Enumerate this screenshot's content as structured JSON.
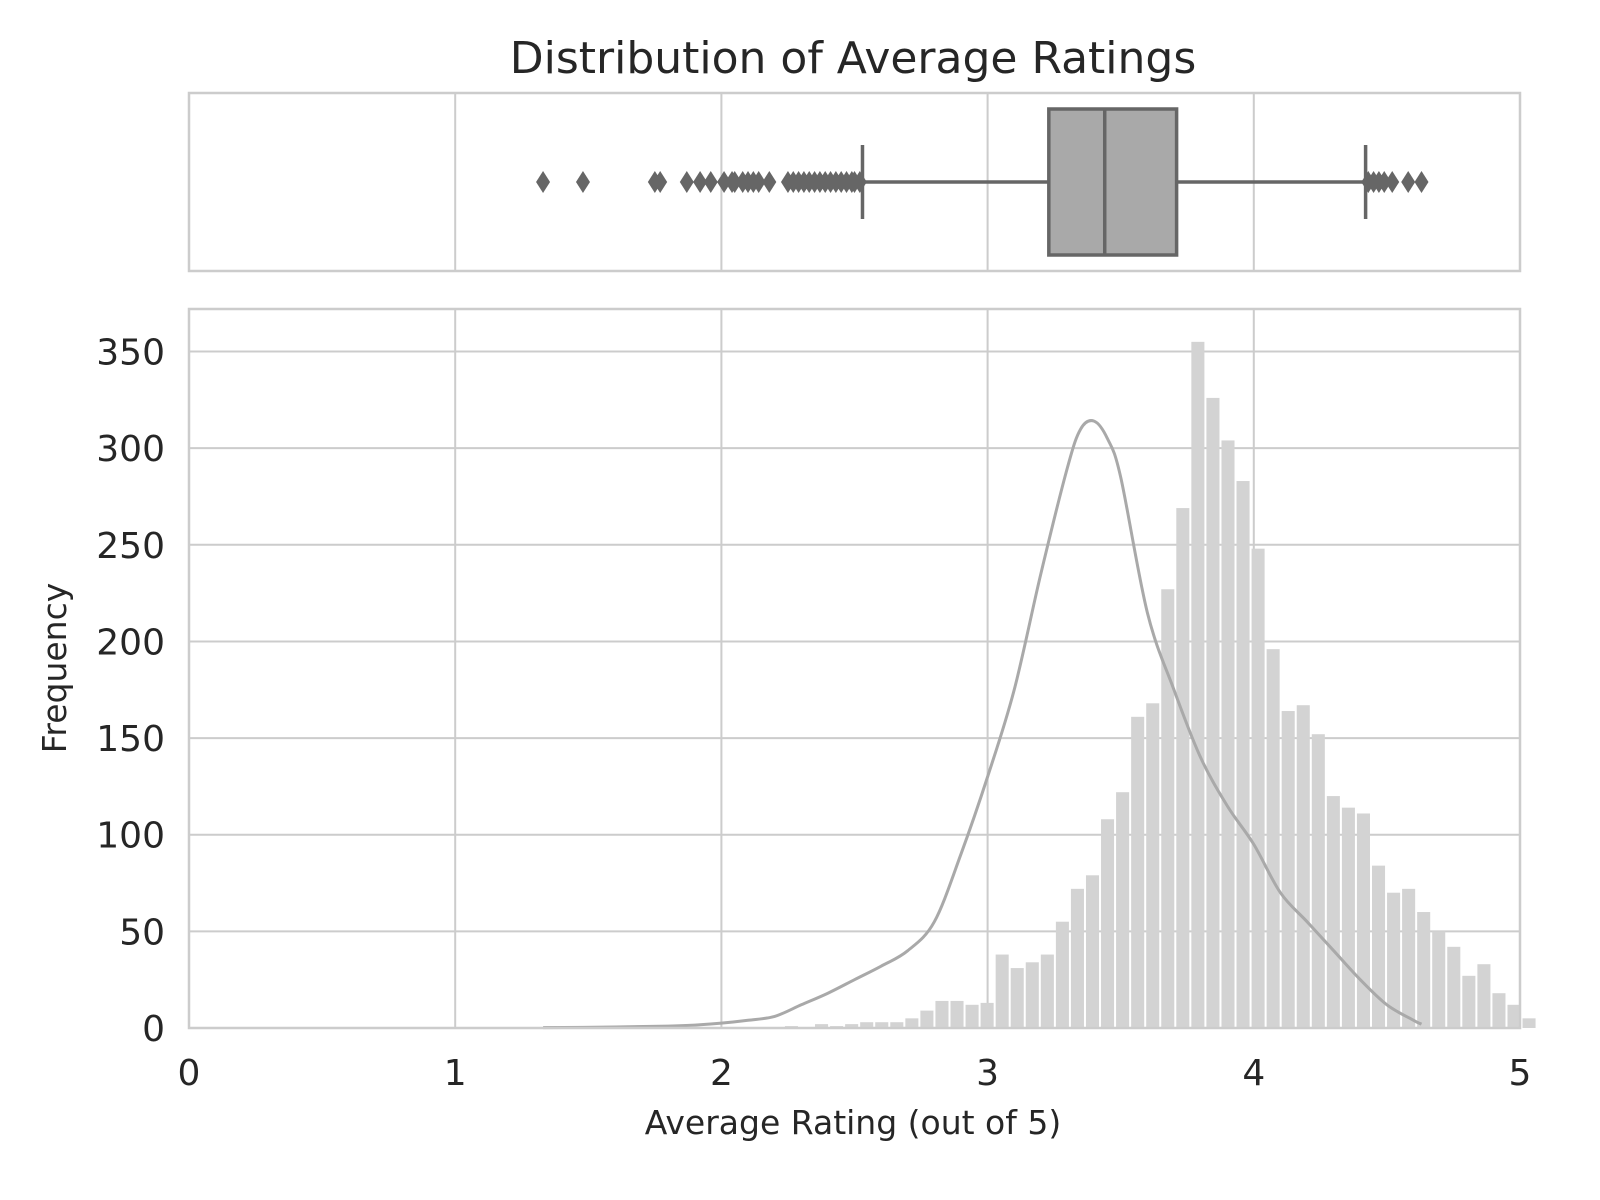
{
  "colors": {
    "background": "#ffffff",
    "grid": "#cccccc",
    "spine": "#cccccc",
    "bar": "#d3d3d3",
    "kde": "#a9a9a9",
    "box_fill": "#a9a9a9",
    "box_line": "#666666",
    "text": "#262626"
  },
  "chart_data": [
    {
      "type": "box",
      "title": "Distribution of Average Ratings",
      "xlim": [
        0,
        5
      ],
      "grid": true,
      "box": {
        "whisker_low": 2.53,
        "q1": 3.23,
        "median": 3.44,
        "q3": 3.71,
        "whisker_high": 4.42
      },
      "outliers": [
        1.33,
        1.48,
        1.75,
        1.77,
        1.87,
        1.92,
        1.96,
        2.01,
        2.04,
        2.05,
        2.08,
        2.1,
        2.12,
        2.14,
        2.18,
        2.25,
        2.27,
        2.29,
        2.31,
        2.33,
        2.35,
        2.37,
        2.39,
        2.41,
        2.43,
        2.45,
        2.47,
        2.49,
        2.5,
        2.52,
        4.43,
        4.45,
        4.47,
        4.49,
        4.52,
        4.58,
        4.63
      ]
    },
    {
      "type": "bar",
      "subtype": "histogram",
      "xlabel": "Average Rating (out of 5)",
      "ylabel": "Frequency",
      "xlim": [
        0,
        5
      ],
      "ylim": [
        0,
        372
      ],
      "xticks": [
        "0",
        "1",
        "2",
        "3",
        "4",
        "5"
      ],
      "yticks": [
        "0",
        "50",
        "100",
        "150",
        "200",
        "250",
        "300",
        "350"
      ],
      "grid": true,
      "bin_start": 1.33,
      "bin_width": 0.05655,
      "values": [
        1,
        0,
        0,
        0,
        0,
        0,
        0,
        0,
        0,
        0,
        0,
        0,
        0,
        0,
        0,
        0,
        1,
        0,
        2,
        1,
        2,
        3,
        3,
        3,
        5,
        9,
        14,
        14,
        12,
        13,
        38,
        31,
        34,
        38,
        55,
        72,
        79,
        108,
        122,
        161,
        168,
        227,
        269,
        355,
        326,
        304,
        283,
        248,
        196,
        164,
        167,
        152,
        120,
        114,
        111,
        84,
        70,
        72,
        60,
        50,
        42,
        27,
        33,
        18,
        12,
        5
      ],
      "kde": {
        "x": [
          1.33,
          1.6,
          1.8,
          1.9,
          2.0,
          2.1,
          2.2,
          2.3,
          2.4,
          2.5,
          2.6,
          2.7,
          2.8,
          2.9,
          3.0,
          3.1,
          3.2,
          3.3,
          3.35,
          3.4,
          3.45,
          3.5,
          3.6,
          3.7,
          3.8,
          3.9,
          4.0,
          4.1,
          4.2,
          4.3,
          4.4,
          4.5,
          4.6,
          4.63
        ],
        "y": [
          0.2,
          0.5,
          1,
          1.5,
          2.5,
          4,
          6,
          12,
          18,
          25,
          32,
          40,
          55,
          90,
          130,
          175,
          235,
          290,
          310,
          314,
          305,
          285,
          215,
          175,
          140,
          115,
          95,
          70,
          55,
          40,
          25,
          12,
          4,
          2
        ]
      }
    }
  ]
}
